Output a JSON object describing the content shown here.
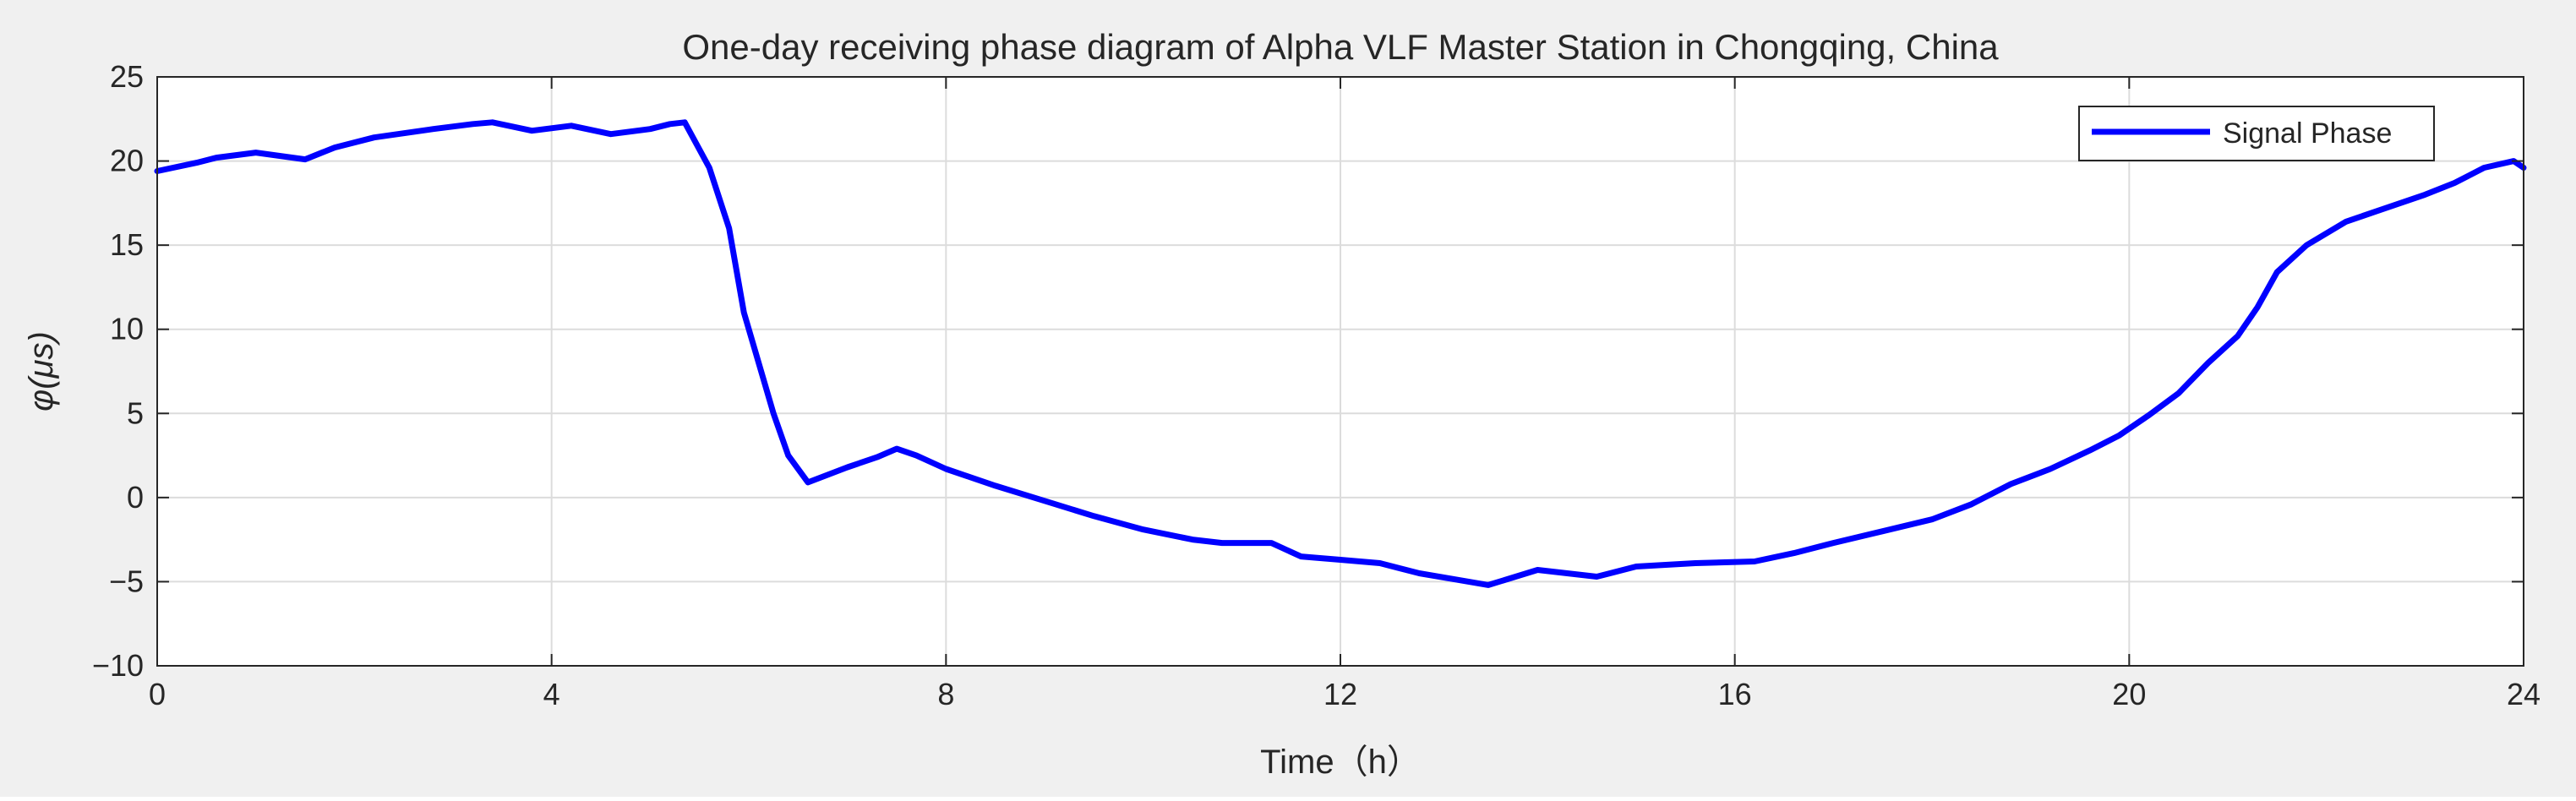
{
  "chart_data": {
    "type": "line",
    "title": "One-day receiving phase diagram of Alpha VLF Master Station in Chongqing, China",
    "xlabel": "Time（h）",
    "ylabel": "φ(μs)",
    "xlim": [
      0,
      24
    ],
    "ylim": [
      -10,
      25
    ],
    "xticks": [
      0,
      4,
      8,
      12,
      16,
      20,
      24
    ],
    "yticks": [
      -10,
      -5,
      0,
      5,
      10,
      15,
      20,
      25
    ],
    "xtick_labels": [
      "0",
      "4",
      "8",
      "12",
      "16",
      "20",
      "24"
    ],
    "ytick_labels": [
      "−10",
      "−5",
      "0",
      "5",
      "10",
      "15",
      "20",
      "25"
    ],
    "grid": true,
    "legend_position": "top-right",
    "series": [
      {
        "name": "Signal Phase",
        "color": "#0000ff",
        "x": [
          0,
          0.4,
          0.6,
          1.0,
          1.5,
          1.8,
          2.2,
          2.8,
          3.2,
          3.4,
          3.8,
          4.2,
          4.6,
          5.0,
          5.2,
          5.35,
          5.6,
          5.8,
          5.95,
          6.1,
          6.25,
          6.4,
          6.6,
          7.0,
          7.3,
          7.5,
          7.7,
          8.0,
          8.5,
          9.0,
          9.5,
          10.0,
          10.5,
          10.8,
          11.3,
          11.6,
          12.0,
          12.4,
          12.8,
          13.2,
          13.5,
          14.0,
          14.6,
          15.0,
          15.6,
          16.2,
          16.6,
          17.0,
          17.5,
          18.0,
          18.4,
          18.8,
          19.2,
          19.6,
          19.9,
          20.2,
          20.5,
          20.8,
          21.1,
          21.3,
          21.5,
          21.8,
          22.2,
          22.6,
          23.0,
          23.3,
          23.6,
          23.9,
          24.0
        ],
        "values": [
          19.4,
          19.9,
          20.2,
          20.5,
          20.1,
          20.8,
          21.4,
          21.9,
          22.2,
          22.3,
          21.8,
          22.1,
          21.6,
          21.9,
          22.2,
          22.3,
          19.6,
          16.0,
          11.0,
          8.0,
          5.0,
          2.5,
          0.9,
          1.8,
          2.4,
          2.9,
          2.5,
          1.7,
          0.7,
          -0.2,
          -1.1,
          -1.9,
          -2.5,
          -2.7,
          -2.7,
          -3.5,
          -3.7,
          -3.9,
          -4.5,
          -4.9,
          -5.2,
          -4.3,
          -4.7,
          -4.1,
          -3.9,
          -3.8,
          -3.3,
          -2.7,
          -2.0,
          -1.3,
          -0.4,
          0.8,
          1.7,
          2.8,
          3.7,
          4.9,
          6.2,
          8.0,
          9.6,
          11.3,
          13.4,
          15.0,
          16.4,
          17.2,
          18.0,
          18.7,
          19.6,
          20.0,
          19.6
        ]
      }
    ]
  }
}
